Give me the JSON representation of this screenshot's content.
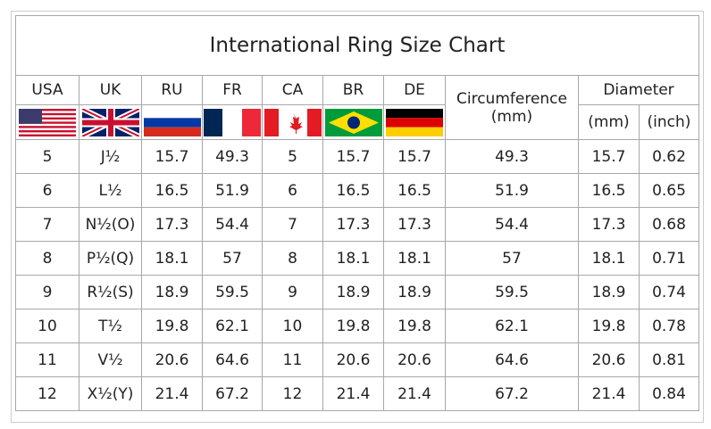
{
  "title": "International Ring Size Chart",
  "headers": [
    "USA",
    "UK",
    "RU",
    "FR",
    "CA",
    "BR",
    "DE"
  ],
  "circumference_header": [
    "Circumference",
    "(mm)"
  ],
  "diameter_header": "Diameter",
  "diameter_subheaders": [
    "(mm)",
    "(inch)"
  ],
  "flags": [
    "us-flag-icon",
    "uk-flag-icon",
    "russia-flag-icon",
    "france-flag-icon",
    "canada-flag-icon",
    "brazil-flag-icon",
    "germany-flag-icon"
  ],
  "rows": [
    [
      "5",
      "J½",
      "15.7",
      "49.3",
      "5",
      "15.7",
      "15.7",
      "49.3",
      "15.7",
      "0.62"
    ],
    [
      "6",
      "L½",
      "16.5",
      "51.9",
      "6",
      "16.5",
      "16.5",
      "51.9",
      "16.5",
      "0.65"
    ],
    [
      "7",
      "N½(O)",
      "17.3",
      "54.4",
      "7",
      "17.3",
      "17.3",
      "54.4",
      "17.3",
      "0.68"
    ],
    [
      "8",
      "P½(Q)",
      "18.1",
      "57",
      "8",
      "18.1",
      "18.1",
      "57",
      "18.1",
      "0.71"
    ],
    [
      "9",
      "R½(S)",
      "18.9",
      "59.5",
      "9",
      "18.9",
      "18.9",
      "59.5",
      "18.9",
      "0.74"
    ],
    [
      "10",
      "T½",
      "19.8",
      "62.1",
      "10",
      "19.8",
      "19.8",
      "62.1",
      "19.8",
      "0.78"
    ],
    [
      "11",
      "V½",
      "20.6",
      "64.6",
      "11",
      "20.6",
      "20.6",
      "64.6",
      "20.6",
      "0.81"
    ],
    [
      "12",
      "X½(Y)",
      "21.4",
      "67.2",
      "12",
      "21.4",
      "21.4",
      "67.2",
      "21.4",
      "0.84"
    ]
  ]
}
